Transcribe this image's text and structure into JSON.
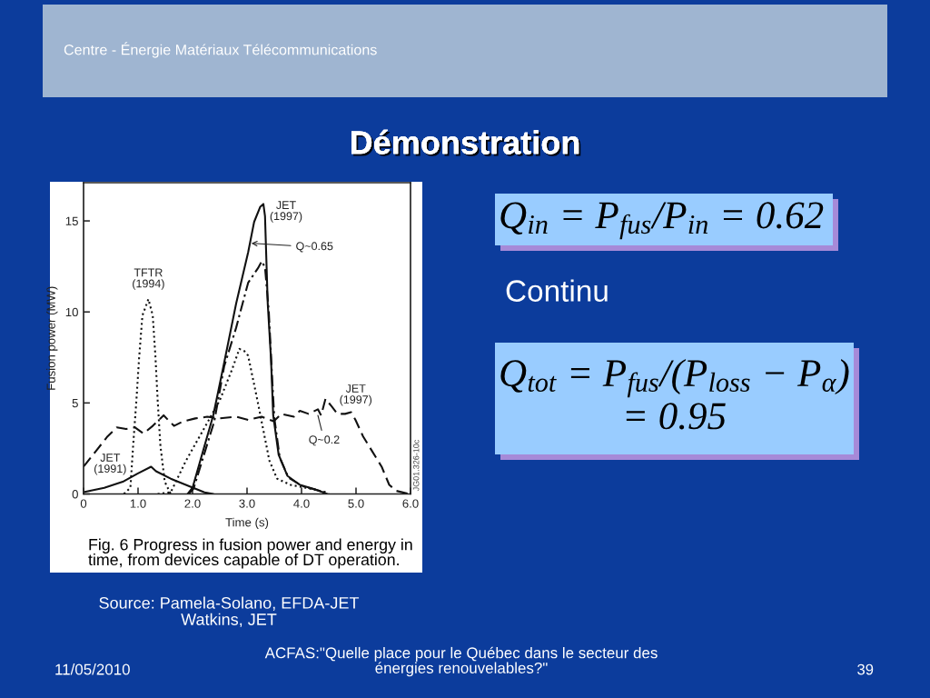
{
  "chart_data": {
    "type": "line",
    "title": "Démonstration",
    "xlabel": "Time (s)",
    "ylabel": "Fusion power (MW)",
    "xlim": [
      0,
      6.0
    ],
    "ylim": [
      0,
      17.1
    ],
    "xticks": [
      0,
      {
        "value": 1,
        "label": "1.0"
      },
      {
        "value": 2,
        "label": "2.0"
      },
      {
        "value": 3,
        "label": "3.0"
      },
      {
        "value": 4,
        "label": "4.0"
      },
      {
        "value": 5,
        "label": "5.0"
      },
      {
        "value": 6,
        "label": "6.0"
      }
    ],
    "yticks": [
      0,
      5,
      10,
      15
    ],
    "series": [
      {
        "color": "#111111",
        "line_style": "solid",
        "x": [
          0,
          0.38,
          0.72,
          0.99,
          1.24,
          1.33,
          1.6,
          1.94,
          2.22,
          2.38
        ],
        "values": [
          0.1,
          0.34,
          0.67,
          1.12,
          1.5,
          1.25,
          0.84,
          0.42,
          0.09,
          0
        ]
      },
      {
        "color": "#111111",
        "line_style": "dotted",
        "x": [
          0.74,
          0.86,
          0.91,
          0.97,
          1.02,
          1.08,
          1.19,
          1.27,
          1.32,
          1.36,
          1.41,
          1.49,
          1.6
        ],
        "values": [
          0,
          0.34,
          2.66,
          5.15,
          7.5,
          9.8,
          10.7,
          9.8,
          7.5,
          5.15,
          2.66,
          0.67,
          0
        ]
      },
      {
        "color": "#111111",
        "line_style": "dashed",
        "x": [
          0,
          0.22,
          0.44,
          0.61,
          0.78,
          0.94,
          1.1,
          1.27,
          1.47,
          1.55,
          1.66,
          1.83,
          2.05,
          2.27,
          2.5,
          2.8,
          3.02,
          3.27,
          3.49,
          3.63,
          3.86,
          3.97,
          4.13,
          4.3,
          4.36,
          4.44,
          4.55,
          4.66,
          4.8,
          4.91,
          4.99,
          5.13,
          5.3,
          5.47,
          5.61,
          5.74,
          5.97
        ],
        "values": [
          1.5,
          2.33,
          3.16,
          3.66,
          3.57,
          3.66,
          3.32,
          3.74,
          4.32,
          4.07,
          3.74,
          3.99,
          4.15,
          4.24,
          4.15,
          4.24,
          4.07,
          4.24,
          3.99,
          4.4,
          4.24,
          4.57,
          4.4,
          4.65,
          4.32,
          5.23,
          4.82,
          4.4,
          4.4,
          4.49,
          4.07,
          3.16,
          2.33,
          1.5,
          0.5,
          0.17,
          0
        ]
      },
      {
        "color": "#111111",
        "line_style": "solid",
        "x": [
          1.91,
          2.0,
          2.38,
          2.58,
          2.8,
          3.02,
          3.13,
          3.24,
          3.3,
          3.33,
          3.38,
          3.44,
          3.48,
          3.58,
          3.74,
          3.97,
          4.24,
          4.47
        ],
        "values": [
          0,
          0.34,
          4.32,
          7.2,
          10.46,
          13.27,
          14.94,
          15.76,
          15.93,
          15.26,
          10.46,
          7.4,
          4.32,
          2.16,
          1.0,
          0.5,
          0.26,
          0
        ]
      },
      {
        "color": "#111111",
        "line_style": "dashdot",
        "x": [
          1.93,
          2.02,
          2.4,
          2.58,
          2.8,
          3.02,
          3.2,
          3.27,
          3.33,
          3.4,
          3.45,
          3.5,
          3.6,
          3.76,
          4.0,
          4.3,
          4.5
        ],
        "values": [
          0,
          0.3,
          4.0,
          7.0,
          9.13,
          11.6,
          12.4,
          12.78,
          12.45,
          10.0,
          7.0,
          4.2,
          2.0,
          0.9,
          0.45,
          0.2,
          0
        ]
      },
      {
        "color": "#111111",
        "line_style": "dotted",
        "x": [
          1.36,
          1.6,
          1.88,
          2.16,
          2.5,
          2.72,
          2.86,
          2.95,
          3.02,
          3.19,
          3.3,
          3.41,
          3.55,
          3.8,
          4.08,
          4.3,
          4.45
        ],
        "values": [
          0,
          0.09,
          1.83,
          3.32,
          5.15,
          6.8,
          7.97,
          7.85,
          7.6,
          5.15,
          3.49,
          1.83,
          0.84,
          0.5,
          0.34,
          0.2,
          0.1
        ]
      }
    ],
    "annotations": [
      {
        "text": "JET\n(1997)",
        "x": 3.3,
        "y": 15.93
      },
      {
        "text": "Q~0.65",
        "x": 3.08,
        "y": 13.77
      },
      {
        "text": "TFTR\n(1994)",
        "x": 1.19,
        "y": 10.7
      },
      {
        "text": "JET\n(1997)",
        "x": 4.44,
        "y": 5.23
      },
      {
        "text": "Q~0.2",
        "x": 4.3,
        "y": 4.32
      },
      {
        "text": "JET\n(1991)",
        "x": 0.72,
        "y": 0.67
      },
      "Centre - Énergie Matériaux Télécommunications",
      "JG01.326-10c",
      "Fig. 6 Progress in fusion power and energy in\ntime, from devices capable of DT operation.",
      "Q$_{in}$ = P$_{fus}$/P$_{in}$ = 0.62",
      "Continu",
      "Q$_{tot}$ = P$_{fus}$/(P$_{loss}$ − P$_{α}$)\n= 0.95",
      "Source: Pamela-Solano, EFDA-JET\nWatkins, JET",
      "11/05/2010",
      "ACFAS:\"Quelle place pour le Québec dans le secteur des\nénergies renouvelables?\"",
      "39"
    ]
  }
}
